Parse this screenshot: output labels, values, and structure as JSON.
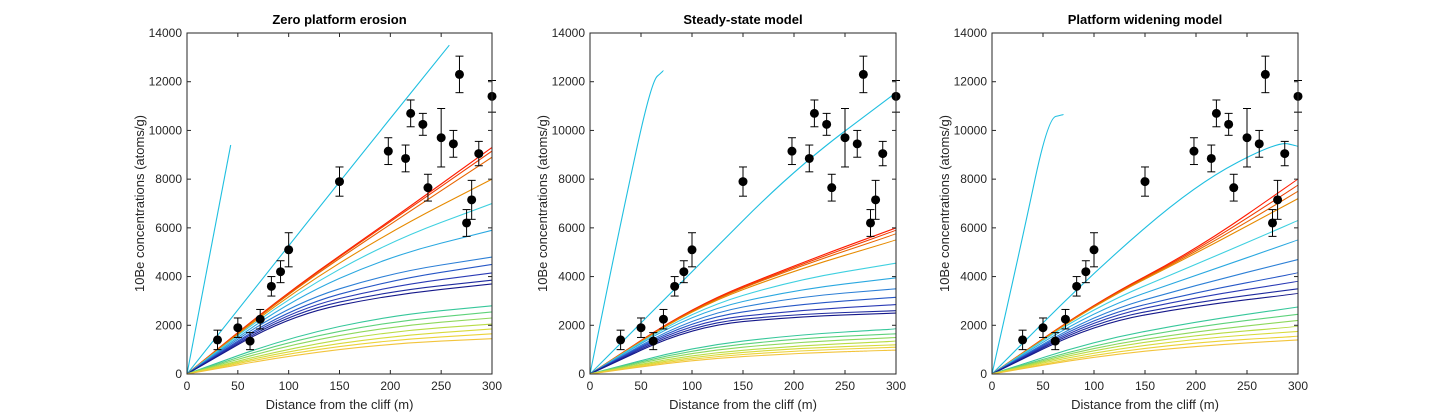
{
  "figure": {
    "ylabel": "10Be concentrations (atoms/g)",
    "xlabel": "Distance from the cliff (m)"
  },
  "chart_data": [
    {
      "type": "line",
      "title": "Zero platform erosion",
      "xlabel": "Distance from the cliff (m)",
      "ylabel": "10Be concentrations (atoms/g)",
      "xlim": [
        0,
        300
      ],
      "ylim": [
        0,
        14000
      ],
      "xticks": [
        0,
        50,
        100,
        150,
        200,
        250,
        300
      ],
      "yticks": [
        0,
        2000,
        4000,
        6000,
        8000,
        10000,
        12000,
        14000
      ],
      "grid": false,
      "observations": {
        "x": [
          30,
          50,
          62,
          72,
          83,
          92,
          100,
          150,
          198,
          215,
          220,
          232,
          237,
          250,
          262,
          268,
          275,
          280,
          287,
          300
        ],
        "y": [
          1400,
          1900,
          1350,
          2250,
          3600,
          4200,
          5100,
          7900,
          9150,
          8850,
          10700,
          10250,
          7650,
          9700,
          9450,
          12300,
          6200,
          7150,
          9050,
          11400
        ],
        "err": [
          400,
          400,
          350,
          400,
          400,
          450,
          700,
          600,
          550,
          550,
          550,
          450,
          550,
          1200,
          550,
          750,
          550,
          800,
          500,
          650
        ]
      },
      "model_curves": [
        {
          "color": "#1fbfe0",
          "x": [
            0,
            43
          ],
          "y": [
            0,
            9400
          ]
        },
        {
          "color": "#1fbfe0",
          "x": [
            0,
            150,
            258
          ],
          "y": [
            0,
            7900,
            13500
          ]
        },
        {
          "color": "#ff1a00",
          "x": [
            0,
            100,
            200,
            300
          ],
          "y": [
            0,
            3400,
            6300,
            9300
          ]
        },
        {
          "color": "#f03c00",
          "x": [
            0,
            100,
            200,
            300
          ],
          "y": [
            0,
            3370,
            6250,
            9150
          ]
        },
        {
          "color": "#e86400",
          "x": [
            0,
            100,
            200,
            300
          ],
          "y": [
            0,
            3330,
            6150,
            8900
          ]
        },
        {
          "color": "#e68a00",
          "x": [
            0,
            100,
            200,
            300
          ],
          "y": [
            0,
            3250,
            5850,
            8000
          ]
        },
        {
          "color": "#3fd0e0",
          "x": [
            0,
            100,
            200,
            300
          ],
          "y": [
            0,
            3150,
            5450,
            7000
          ]
        },
        {
          "color": "#2aa8e0",
          "x": [
            0,
            100,
            200,
            300
          ],
          "y": [
            0,
            3000,
            4850,
            5900
          ]
        },
        {
          "color": "#2c7fd6",
          "x": [
            0,
            100,
            200,
            300
          ],
          "y": [
            0,
            2850,
            4150,
            4800
          ]
        },
        {
          "color": "#2656c6",
          "x": [
            0,
            100,
            200,
            300
          ],
          "y": [
            0,
            2700,
            3850,
            4500
          ]
        },
        {
          "color": "#2a3ab5",
          "x": [
            0,
            100,
            200,
            300
          ],
          "y": [
            0,
            2600,
            3600,
            4150
          ]
        },
        {
          "color": "#1e2a9e",
          "x": [
            0,
            100,
            200,
            300
          ],
          "y": [
            0,
            2500,
            3400,
            3850
          ]
        },
        {
          "color": "#15188a",
          "x": [
            0,
            100,
            200,
            300
          ],
          "y": [
            0,
            2400,
            3250,
            3700
          ]
        },
        {
          "color": "#36c79a",
          "x": [
            0,
            100,
            200,
            300
          ],
          "y": [
            0,
            1500,
            2400,
            2800
          ]
        },
        {
          "color": "#5ed27a",
          "x": [
            0,
            100,
            200,
            300
          ],
          "y": [
            0,
            1350,
            2150,
            2550
          ]
        },
        {
          "color": "#8ed85c",
          "x": [
            0,
            100,
            200,
            300
          ],
          "y": [
            0,
            1200,
            1950,
            2300
          ]
        },
        {
          "color": "#b9dc45",
          "x": [
            0,
            100,
            200,
            300
          ],
          "y": [
            0,
            1050,
            1750,
            2050
          ]
        },
        {
          "color": "#d8da3a",
          "x": [
            0,
            100,
            200,
            300
          ],
          "y": [
            0,
            950,
            1550,
            1850
          ]
        },
        {
          "color": "#ecd238",
          "x": [
            0,
            100,
            200,
            300
          ],
          "y": [
            0,
            850,
            1400,
            1650
          ]
        },
        {
          "color": "#f2c43c",
          "x": [
            0,
            100,
            200,
            300
          ],
          "y": [
            0,
            750,
            1250,
            1450
          ]
        }
      ]
    },
    {
      "type": "line",
      "title": "Steady-state model",
      "xlabel": "Distance from the cliff (m)",
      "ylabel": "10Be concentrations (atoms/g)",
      "xlim": [
        0,
        300
      ],
      "ylim": [
        0,
        14000
      ],
      "xticks": [
        0,
        50,
        100,
        150,
        200,
        250,
        300
      ],
      "yticks": [
        0,
        2000,
        4000,
        6000,
        8000,
        10000,
        12000,
        14000
      ],
      "grid": false,
      "observations": {
        "x": [
          30,
          50,
          62,
          72,
          83,
          92,
          100,
          150,
          198,
          215,
          220,
          232,
          237,
          250,
          262,
          268,
          275,
          280,
          287,
          300
        ],
        "y": [
          1400,
          1900,
          1350,
          2250,
          3600,
          4200,
          5100,
          7900,
          9150,
          8850,
          10700,
          10250,
          7650,
          9700,
          9450,
          12300,
          6200,
          7150,
          9050,
          11400
        ],
        "err": [
          400,
          400,
          350,
          400,
          400,
          450,
          700,
          600,
          550,
          550,
          550,
          450,
          550,
          1200,
          550,
          750,
          550,
          800,
          500,
          650
        ]
      },
      "model_curves": [
        {
          "color": "#1fbfe0",
          "x": [
            0,
            30,
            60,
            72
          ],
          "y": [
            0,
            6200,
            12000,
            12450
          ]
        },
        {
          "color": "#1fbfe0",
          "x": [
            0,
            100,
            200,
            300
          ],
          "y": [
            0,
            4200,
            8400,
            11550
          ]
        },
        {
          "color": "#ff1a00",
          "x": [
            0,
            100,
            200,
            300
          ],
          "y": [
            0,
            2750,
            4450,
            6000
          ]
        },
        {
          "color": "#f03c00",
          "x": [
            0,
            100,
            200,
            300
          ],
          "y": [
            0,
            2720,
            4400,
            5900
          ]
        },
        {
          "color": "#e86400",
          "x": [
            0,
            100,
            200,
            300
          ],
          "y": [
            0,
            2700,
            4350,
            5750
          ]
        },
        {
          "color": "#e68a00",
          "x": [
            0,
            100,
            200,
            300
          ],
          "y": [
            0,
            2680,
            4250,
            5500
          ]
        },
        {
          "color": "#3fd0e0",
          "x": [
            0,
            100,
            200,
            300
          ],
          "y": [
            0,
            2600,
            3850,
            4550
          ]
        },
        {
          "color": "#2aa8e0",
          "x": [
            0,
            100,
            200,
            300
          ],
          "y": [
            0,
            2500,
            3450,
            3950
          ]
        },
        {
          "color": "#2c7fd6",
          "x": [
            0,
            100,
            200,
            300
          ],
          "y": [
            0,
            2350,
            3150,
            3500
          ]
        },
        {
          "color": "#2656c6",
          "x": [
            0,
            100,
            200,
            300
          ],
          "y": [
            0,
            2250,
            2850,
            3150
          ]
        },
        {
          "color": "#2a3ab5",
          "x": [
            0,
            100,
            200,
            300
          ],
          "y": [
            0,
            2150,
            2600,
            2850
          ]
        },
        {
          "color": "#1e2a9e",
          "x": [
            0,
            100,
            200,
            300
          ],
          "y": [
            0,
            2050,
            2450,
            2600
          ]
        },
        {
          "color": "#15188a",
          "x": [
            0,
            100,
            200,
            300
          ],
          "y": [
            0,
            1950,
            2350,
            2500
          ]
        },
        {
          "color": "#36c79a",
          "x": [
            0,
            100,
            200,
            300
          ],
          "y": [
            0,
            1100,
            1600,
            1850
          ]
        },
        {
          "color": "#5ed27a",
          "x": [
            0,
            100,
            200,
            300
          ],
          "y": [
            0,
            1000,
            1450,
            1650
          ]
        },
        {
          "color": "#8ed85c",
          "x": [
            0,
            100,
            200,
            300
          ],
          "y": [
            0,
            900,
            1300,
            1500
          ]
        },
        {
          "color": "#b9dc45",
          "x": [
            0,
            100,
            200,
            300
          ],
          "y": [
            0,
            800,
            1150,
            1350
          ]
        },
        {
          "color": "#d8da3a",
          "x": [
            0,
            100,
            200,
            300
          ],
          "y": [
            0,
            720,
            1050,
            1200
          ]
        },
        {
          "color": "#ecd238",
          "x": [
            0,
            100,
            200,
            300
          ],
          "y": [
            0,
            650,
            950,
            1100
          ]
        },
        {
          "color": "#f2c43c",
          "x": [
            0,
            100,
            200,
            300
          ],
          "y": [
            0,
            580,
            850,
            980
          ]
        }
      ]
    },
    {
      "type": "line",
      "title": "Platform widening model",
      "xlabel": "Distance from the cliff (m)",
      "ylabel": "10Be concentrations (atoms/g)",
      "xlim": [
        0,
        300
      ],
      "ylim": [
        0,
        14000
      ],
      "xticks": [
        0,
        50,
        100,
        150,
        200,
        250,
        300
      ],
      "yticks": [
        0,
        2000,
        4000,
        6000,
        8000,
        10000,
        12000,
        14000
      ],
      "grid": false,
      "observations": {
        "x": [
          30,
          50,
          62,
          72,
          83,
          92,
          100,
          150,
          198,
          215,
          220,
          232,
          237,
          250,
          262,
          268,
          275,
          280,
          287,
          300
        ],
        "y": [
          1400,
          1900,
          1350,
          2250,
          3600,
          4200,
          5100,
          7900,
          9150,
          8850,
          10700,
          10250,
          7650,
          9700,
          9450,
          12300,
          6200,
          7150,
          9050,
          11400
        ],
        "err": [
          400,
          400,
          350,
          400,
          400,
          450,
          700,
          600,
          550,
          550,
          550,
          450,
          550,
          1200,
          550,
          750,
          550,
          800,
          500,
          650
        ]
      },
      "model_curves": [
        {
          "color": "#1fbfe0",
          "x": [
            0,
            30,
            55,
            70
          ],
          "y": [
            0,
            5600,
            10500,
            10650
          ]
        },
        {
          "color": "#1fbfe0",
          "x": [
            0,
            100,
            200,
            280,
            300
          ],
          "y": [
            0,
            4200,
            7800,
            9550,
            9350
          ]
        },
        {
          "color": "#ff1a00",
          "x": [
            0,
            100,
            200,
            300
          ],
          "y": [
            0,
            2900,
            5100,
            8000
          ]
        },
        {
          "color": "#f03c00",
          "x": [
            0,
            100,
            200,
            300
          ],
          "y": [
            0,
            2880,
            5050,
            7750
          ]
        },
        {
          "color": "#e86400",
          "x": [
            0,
            100,
            200,
            300
          ],
          "y": [
            0,
            2860,
            5000,
            7500
          ]
        },
        {
          "color": "#e68a00",
          "x": [
            0,
            100,
            200,
            300
          ],
          "y": [
            0,
            2840,
            4950,
            7200
          ]
        },
        {
          "color": "#3fd0e0",
          "x": [
            0,
            100,
            200,
            300
          ],
          "y": [
            0,
            2750,
            4500,
            6300
          ]
        },
        {
          "color": "#2aa8e0",
          "x": [
            0,
            100,
            200,
            300
          ],
          "y": [
            0,
            2600,
            4050,
            5500
          ]
        },
        {
          "color": "#2c7fd6",
          "x": [
            0,
            100,
            200,
            300
          ],
          "y": [
            0,
            2450,
            3650,
            4700
          ]
        },
        {
          "color": "#2656c6",
          "x": [
            0,
            100,
            200,
            300
          ],
          "y": [
            0,
            2350,
            3350,
            4150
          ]
        },
        {
          "color": "#2a3ab5",
          "x": [
            0,
            100,
            200,
            300
          ],
          "y": [
            0,
            2250,
            3150,
            3800
          ]
        },
        {
          "color": "#1e2a9e",
          "x": [
            0,
            100,
            200,
            300
          ],
          "y": [
            0,
            2150,
            2950,
            3500
          ]
        },
        {
          "color": "#15188a",
          "x": [
            0,
            100,
            200,
            300
          ],
          "y": [
            0,
            2050,
            2800,
            3300
          ]
        },
        {
          "color": "#36c79a",
          "x": [
            0,
            100,
            200,
            300
          ],
          "y": [
            0,
            1350,
            2150,
            2750
          ]
        },
        {
          "color": "#5ed27a",
          "x": [
            0,
            100,
            200,
            300
          ],
          "y": [
            0,
            1200,
            1950,
            2450
          ]
        },
        {
          "color": "#8ed85c",
          "x": [
            0,
            100,
            200,
            300
          ],
          "y": [
            0,
            1100,
            1750,
            2200
          ]
        },
        {
          "color": "#b9dc45",
          "x": [
            0,
            100,
            200,
            300
          ],
          "y": [
            0,
            1000,
            1600,
            1950
          ]
        },
        {
          "color": "#d8da3a",
          "x": [
            0,
            100,
            200,
            300
          ],
          "y": [
            0,
            900,
            1450,
            1750
          ]
        },
        {
          "color": "#ecd238",
          "x": [
            0,
            100,
            200,
            300
          ],
          "y": [
            0,
            800,
            1300,
            1550
          ]
        },
        {
          "color": "#f2c43c",
          "x": [
            0,
            100,
            200,
            300
          ],
          "y": [
            0,
            720,
            1150,
            1400
          ]
        }
      ]
    }
  ]
}
